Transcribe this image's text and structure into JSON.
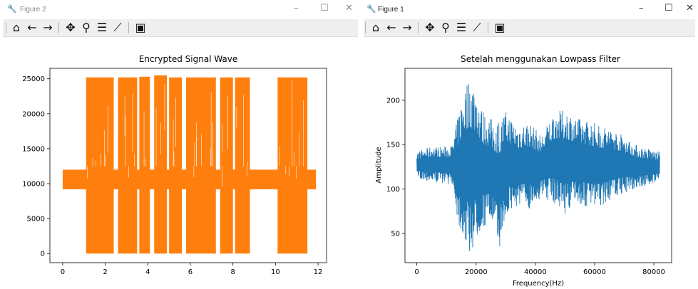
{
  "windows": [
    {
      "id": "w2",
      "title": "Figure 2",
      "controls": {
        "minimize": "–",
        "maximize": "☐",
        "close": "✕"
      },
      "toolbar": [
        {
          "icon": "home-icon",
          "glyph": "⌂"
        },
        {
          "icon": "back-icon",
          "glyph": "←"
        },
        {
          "icon": "forward-icon",
          "glyph": "→"
        },
        {
          "icon": "pan-icon",
          "glyph": "✥"
        },
        {
          "icon": "zoom-icon",
          "glyph": "⚲"
        },
        {
          "icon": "configure-subplots-icon",
          "glyph": "☰"
        },
        {
          "icon": "edit-axis-icon",
          "glyph": "⟋"
        },
        {
          "icon": "save-icon",
          "glyph": "▣"
        }
      ]
    },
    {
      "id": "w1",
      "title": "Figure 1",
      "controls": {
        "minimize": "–",
        "maximize": "☐",
        "close": "✕"
      },
      "toolbar": [
        {
          "icon": "home-icon",
          "glyph": "⌂"
        },
        {
          "icon": "back-icon",
          "glyph": "←"
        },
        {
          "icon": "forward-icon",
          "glyph": "→"
        },
        {
          "icon": "pan-icon",
          "glyph": "✥"
        },
        {
          "icon": "zoom-icon",
          "glyph": "⚲"
        },
        {
          "icon": "configure-subplots-icon",
          "glyph": "☰"
        },
        {
          "icon": "edit-axis-icon",
          "glyph": "⟋"
        },
        {
          "icon": "save-icon",
          "glyph": "▣"
        }
      ]
    }
  ],
  "chart_data": [
    {
      "type": "line",
      "title": "Encrypted Signal Wave",
      "xlabel": "",
      "ylabel": "",
      "xlim": [
        -0.6,
        12.4
      ],
      "ylim": [
        -1300,
        26500
      ],
      "xticks": [
        0,
        2,
        4,
        6,
        8,
        10,
        12
      ],
      "yticks": [
        0,
        5000,
        10000,
        15000,
        20000,
        25000
      ],
      "grid": false,
      "color": "#ff7f0e",
      "x_range": [
        0,
        11.9
      ],
      "baseline_band": [
        9200,
        12000
      ],
      "dense_segments": [
        {
          "x": [
            1.1,
            2.4
          ],
          "y": [
            0,
            25200
          ]
        },
        {
          "x": [
            2.6,
            3.5
          ],
          "y": [
            0,
            25200
          ]
        },
        {
          "x": [
            3.6,
            4.1
          ],
          "y": [
            0,
            25300
          ]
        },
        {
          "x": [
            4.3,
            4.9
          ],
          "y": [
            0,
            25500
          ]
        },
        {
          "x": [
            5.0,
            5.6
          ],
          "y": [
            0,
            25200
          ]
        },
        {
          "x": [
            5.8,
            7.2
          ],
          "y": [
            0,
            25200
          ]
        },
        {
          "x": [
            7.4,
            8.0
          ],
          "y": [
            0,
            25200
          ]
        },
        {
          "x": [
            8.1,
            8.8
          ],
          "y": [
            0,
            25200
          ]
        },
        {
          "x": [
            10.1,
            11.5
          ],
          "y": [
            0,
            25200
          ]
        }
      ]
    },
    {
      "type": "line",
      "title": "Setelah menggunakan Lowpass Filter",
      "xlabel": "Frequency(Hz)",
      "ylabel": "Amplitude",
      "xlim": [
        -4000,
        86000
      ],
      "ylim": [
        17,
        236
      ],
      "xticks": [
        0,
        20000,
        40000,
        60000,
        80000
      ],
      "yticks": [
        50,
        100,
        150,
        200
      ],
      "grid": false,
      "color": "#1f77b4",
      "x_range": [
        0,
        82000
      ],
      "envelope": [
        {
          "x": 0,
          "lo": 112,
          "hi": 142
        },
        {
          "x": 5000,
          "lo": 108,
          "hi": 148
        },
        {
          "x": 10000,
          "lo": 106,
          "hi": 148
        },
        {
          "x": 12000,
          "lo": 105,
          "hi": 150
        },
        {
          "x": 14000,
          "lo": 60,
          "hi": 185
        },
        {
          "x": 16000,
          "lo": 40,
          "hi": 215
        },
        {
          "x": 18000,
          "lo": 25,
          "hi": 228
        },
        {
          "x": 20000,
          "lo": 40,
          "hi": 215
        },
        {
          "x": 22000,
          "lo": 55,
          "hi": 190
        },
        {
          "x": 25000,
          "lo": 62,
          "hi": 180
        },
        {
          "x": 28000,
          "lo": 35,
          "hi": 178
        },
        {
          "x": 30000,
          "lo": 68,
          "hi": 188
        },
        {
          "x": 34000,
          "lo": 80,
          "hi": 172
        },
        {
          "x": 38000,
          "lo": 78,
          "hi": 176
        },
        {
          "x": 42000,
          "lo": 90,
          "hi": 160
        },
        {
          "x": 46000,
          "lo": 85,
          "hi": 185
        },
        {
          "x": 50000,
          "lo": 72,
          "hi": 190
        },
        {
          "x": 54000,
          "lo": 82,
          "hi": 180
        },
        {
          "x": 58000,
          "lo": 78,
          "hi": 178
        },
        {
          "x": 62000,
          "lo": 80,
          "hi": 172
        },
        {
          "x": 66000,
          "lo": 88,
          "hi": 168
        },
        {
          "x": 70000,
          "lo": 95,
          "hi": 160
        },
        {
          "x": 74000,
          "lo": 100,
          "hi": 150
        },
        {
          "x": 78000,
          "lo": 104,
          "hi": 146
        },
        {
          "x": 82000,
          "lo": 108,
          "hi": 142
        }
      ]
    }
  ]
}
